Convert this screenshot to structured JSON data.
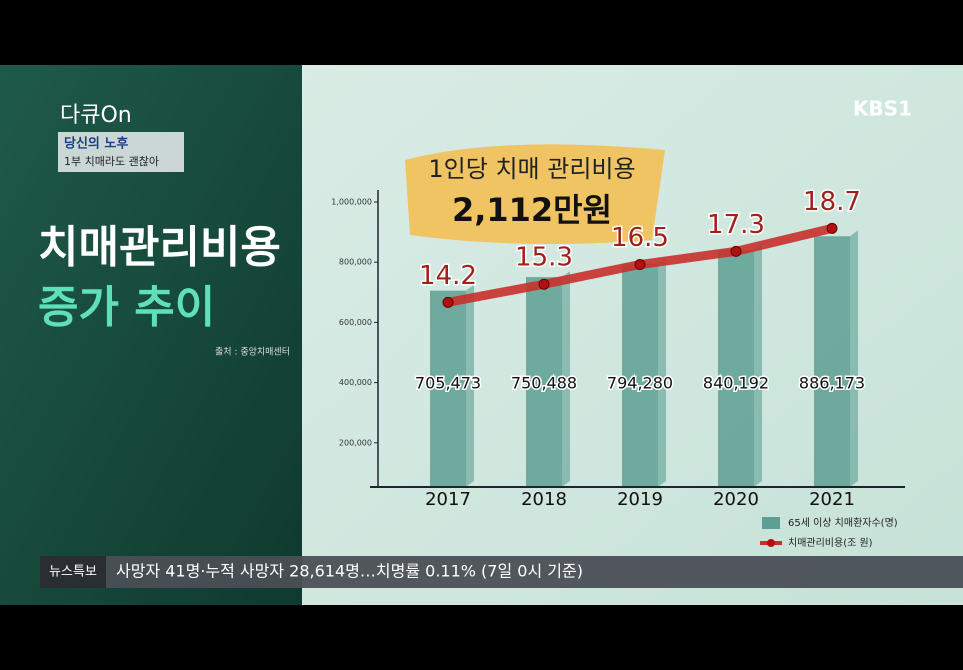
{
  "program": {
    "logo": "다큐On",
    "series_title": "당신의 노후",
    "episode": "1부 치매라도 괜찮아",
    "channel": "KBS1"
  },
  "headline": {
    "line1": "치매관리비용",
    "line2": "증가 추이",
    "source": "출처 : 중앙치매센터"
  },
  "banner": {
    "line1": "1인당 치매 관리비용",
    "line2": "2,112만원"
  },
  "chart_data": {
    "type": "bar",
    "categories": [
      "2017",
      "2018",
      "2019",
      "2020",
      "2021"
    ],
    "series": [
      {
        "name": "65세 이상 치매환자수(명)",
        "color": "#5e9f93",
        "values": [
          705473,
          750488,
          794280,
          840192,
          886173
        ],
        "value_labels": [
          "705,473",
          "750,488",
          "794,280",
          "840,192",
          "886,173"
        ]
      },
      {
        "name": "치매관리비용(조 원)",
        "color": "#c8302b",
        "type": "line",
        "axis": "y2",
        "values": [
          14.2,
          15.3,
          16.5,
          17.3,
          18.7
        ]
      }
    ],
    "ylim": [
      0,
      1000000
    ],
    "yticks": [
      {
        "value": 200000,
        "label": "200,000"
      },
      {
        "value": 400000,
        "label": "400,000"
      },
      {
        "value": 600000,
        "label": "600,000"
      },
      {
        "value": 800000,
        "label": "800,000"
      },
      {
        "value": 1000000,
        "label": "1,000,000"
      }
    ],
    "y2lim": [
      2,
      20.3
    ]
  },
  "ticker": {
    "tag": "뉴스특보",
    "text": "사망자 41명·누적 사망자  28,614명…치명률 0.11% (7일 0시 기준)"
  }
}
